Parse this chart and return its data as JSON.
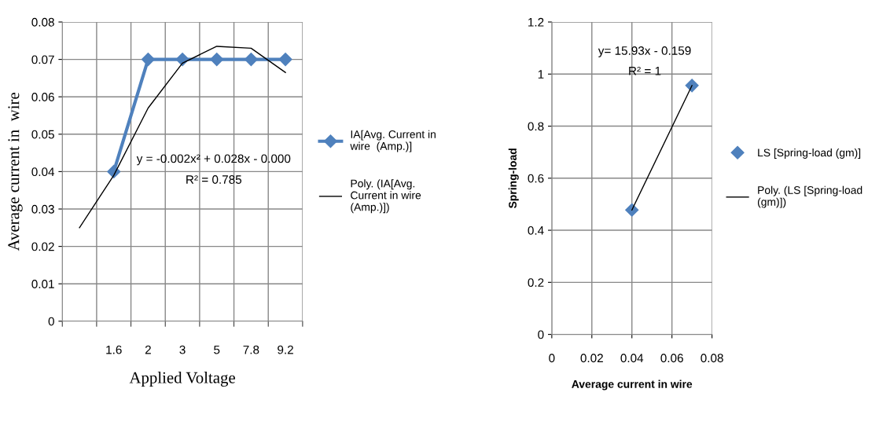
{
  "chart_data": [
    {
      "type": "line",
      "xlabel": "Applied Voltage",
      "ylabel": "Average current in  wire",
      "categories": [
        null,
        "1.6",
        "2",
        "3",
        "5",
        "7.8",
        "9.2"
      ],
      "series": [
        {
          "name": "IA[Avg. Current in\nwire  (Amp.)]",
          "color": "#4f81bd",
          "marker": "diamond",
          "values": [
            null,
            0.04,
            0.07,
            0.07,
            0.07,
            0.07,
            0.07
          ]
        },
        {
          "name": "Poly. (IA[Avg.\nCurrent in wire\n(Amp.)])",
          "color": "#000000",
          "marker": "none",
          "values": [
            0.025,
            0.039,
            0.057,
            0.069,
            0.0735,
            0.073,
            0.0665
          ]
        }
      ],
      "ylim": [
        0,
        0.08
      ],
      "yticks": [
        0,
        0.01,
        0.02,
        0.03,
        0.04,
        0.05,
        0.06,
        0.07,
        0.08
      ],
      "grid": true,
      "legend": "right",
      "line_style": "solid",
      "annotations": [
        "y = -0.002x² + 0.028x - 0.000",
        "R² = 0.785"
      ]
    },
    {
      "type": "scatter",
      "xlabel": "Average current in wire",
      "ylabel": "Spring-load",
      "series": [
        {
          "name": "LS [Spring-load (gm)]",
          "color": "#4f81bd",
          "marker": "diamond",
          "values": [
            0.478,
            0.956
          ]
        },
        {
          "name": "Poly. (LS [Spring-load\n(gm)])",
          "type": "line",
          "color": "#000000",
          "marker": "none",
          "values": [
            0.478,
            0.956
          ]
        }
      ],
      "x": [
        0.04,
        0.07
      ],
      "xlim": [
        0,
        0.08
      ],
      "xticks": [
        0,
        0.02,
        0.04,
        0.06,
        0.08
      ],
      "ylim": [
        0,
        1.2
      ],
      "yticks": [
        0,
        0.2,
        0.4,
        0.6,
        0.8,
        1,
        1.2
      ],
      "grid": true,
      "legend": "right",
      "annotations": [
        "y= 15.93x - 0.159",
        "R² = 1"
      ]
    }
  ]
}
